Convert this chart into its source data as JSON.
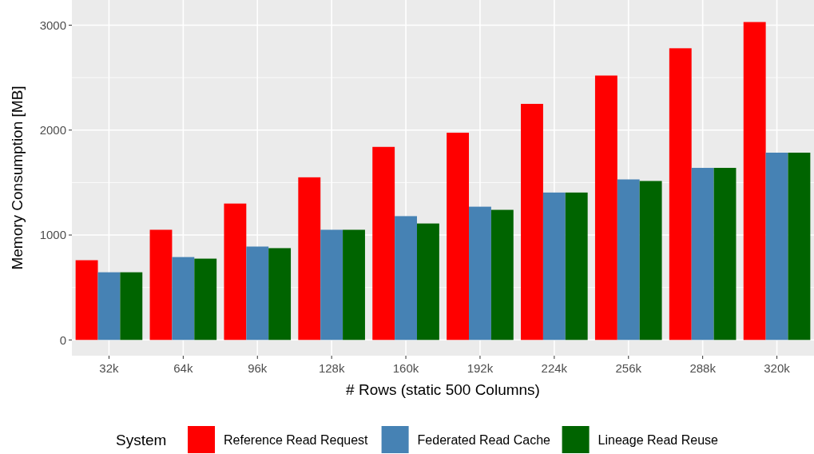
{
  "chart_data": {
    "type": "bar",
    "xlabel": "# Rows (static 500 Columns)",
    "ylabel": "Memory Consumption [MB]",
    "legend_title": "System",
    "legend": "bottom",
    "grid": true,
    "categories": [
      "32k",
      "64k",
      "96k",
      "128k",
      "160k",
      "192k",
      "224k",
      "256k",
      "288k",
      "320k"
    ],
    "series": [
      {
        "name": "Reference Read Request",
        "color": "#ff0000",
        "values": [
          760,
          1050,
          1300,
          1550,
          1840,
          1975,
          2250,
          2520,
          2780,
          3030
        ]
      },
      {
        "name": "Federated Read Cache",
        "color": "#4682b4",
        "values": [
          645,
          790,
          890,
          1050,
          1180,
          1270,
          1405,
          1530,
          1640,
          1785
        ]
      },
      {
        "name": "Lineage Read Reuse",
        "color": "#006400",
        "values": [
          645,
          775,
          875,
          1050,
          1110,
          1240,
          1405,
          1515,
          1640,
          1785
        ]
      }
    ],
    "ylim": [
      -150,
      3240
    ],
    "yticks": [
      0,
      {
        "value": 500,
        "label": null
      },
      1000,
      {
        "value": 1500,
        "label": null
      },
      2000,
      {
        "value": 2500,
        "label": null
      },
      3000
    ]
  }
}
